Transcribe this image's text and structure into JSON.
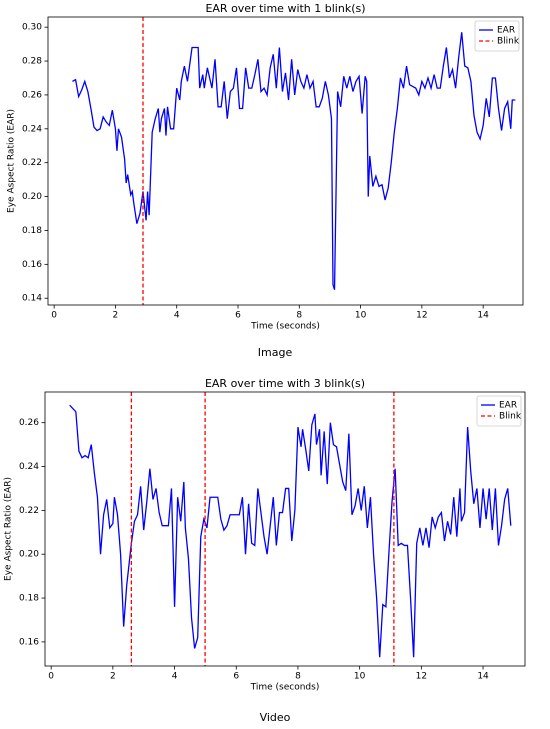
{
  "chart_data": [
    {
      "type": "line",
      "title": "EAR over time with 1 blink(s)",
      "xlabel": "Time (seconds)",
      "ylabel": "Eye Aspect Ratio (EAR)",
      "caption": "Image",
      "xlim": [
        -0.2,
        15.3
      ],
      "ylim": [
        0.136,
        0.306
      ],
      "xticks": [
        0,
        2,
        4,
        6,
        8,
        10,
        12,
        14
      ],
      "yticks": [
        0.14,
        0.16,
        0.18,
        {
          "value": 0.2,
          "label": "0.20"
        },
        0.22,
        0.24,
        0.26,
        0.28,
        {
          "value": 0.3,
          "label": "0.30"
        }
      ],
      "legend": "upper right",
      "x": [
        0.6,
        0.7,
        0.8,
        0.9,
        1.0,
        1.1,
        1.2,
        1.3,
        1.4,
        1.5,
        1.6,
        1.7,
        1.8,
        1.9,
        2.0,
        2.05,
        2.1,
        2.2,
        2.3,
        2.35,
        2.4,
        2.5,
        2.55,
        2.6,
        2.7,
        2.8,
        2.9,
        3.0,
        3.05,
        3.1,
        3.2,
        3.3,
        3.4,
        3.45,
        3.5,
        3.6,
        3.65,
        3.7,
        3.8,
        3.9,
        4.0,
        4.1,
        4.15,
        4.25,
        4.35,
        4.5,
        4.6,
        4.7,
        4.75,
        4.85,
        4.9,
        5.0,
        5.1,
        5.15,
        5.25,
        5.35,
        5.45,
        5.55,
        5.65,
        5.75,
        5.85,
        5.95,
        6.05,
        6.15,
        6.25,
        6.35,
        6.45,
        6.55,
        6.65,
        6.75,
        6.85,
        6.95,
        7.05,
        7.15,
        7.25,
        7.35,
        7.45,
        7.55,
        7.65,
        7.75,
        7.85,
        7.95,
        8.05,
        8.15,
        8.25,
        8.35,
        8.45,
        8.55,
        8.65,
        8.75,
        8.85,
        8.95,
        9.05,
        9.1,
        9.15,
        9.25,
        9.35,
        9.45,
        9.55,
        9.65,
        9.75,
        9.85,
        9.95,
        10.05,
        10.15,
        10.2,
        10.25,
        10.3,
        10.4,
        10.5,
        10.6,
        10.7,
        10.8,
        10.9,
        11.0,
        11.1,
        11.2,
        11.3,
        11.4,
        11.5,
        11.6,
        11.7,
        11.8,
        11.9,
        12.0,
        12.1,
        12.2,
        12.3,
        12.4,
        12.5,
        12.6,
        12.7,
        12.8,
        12.9,
        13.0,
        13.1,
        13.2,
        13.3,
        13.4,
        13.5,
        13.6,
        13.7,
        13.8,
        13.9,
        14.0,
        14.1,
        14.2,
        14.3,
        14.4,
        14.5,
        14.6,
        14.7,
        14.8,
        14.9,
        14.95,
        15.05
      ],
      "series": [
        {
          "name": "EAR",
          "color": "#0000ff",
          "values": [
            0.268,
            0.269,
            0.259,
            0.263,
            0.268,
            0.262,
            0.252,
            0.241,
            0.239,
            0.24,
            0.247,
            0.244,
            0.242,
            0.251,
            0.24,
            0.227,
            0.24,
            0.235,
            0.222,
            0.208,
            0.213,
            0.201,
            0.203,
            0.196,
            0.184,
            0.19,
            0.203,
            0.186,
            0.203,
            0.189,
            0.238,
            0.246,
            0.252,
            0.238,
            0.246,
            0.252,
            0.236,
            0.253,
            0.24,
            0.24,
            0.264,
            0.257,
            0.268,
            0.277,
            0.268,
            0.288,
            0.288,
            0.288,
            0.264,
            0.272,
            0.264,
            0.276,
            0.268,
            0.264,
            0.281,
            0.253,
            0.253,
            0.268,
            0.246,
            0.262,
            0.264,
            0.276,
            0.252,
            0.252,
            0.276,
            0.264,
            0.264,
            0.272,
            0.281,
            0.262,
            0.264,
            0.26,
            0.276,
            0.284,
            0.264,
            0.288,
            0.262,
            0.273,
            0.257,
            0.281,
            0.26,
            0.275,
            0.268,
            0.264,
            0.272,
            0.264,
            0.268,
            0.253,
            0.253,
            0.258,
            0.268,
            0.26,
            0.246,
            0.148,
            0.145,
            0.262,
            0.253,
            0.271,
            0.264,
            0.271,
            0.262,
            0.268,
            0.271,
            0.249,
            0.271,
            0.268,
            0.2,
            0.224,
            0.206,
            0.212,
            0.206,
            0.207,
            0.198,
            0.205,
            0.22,
            0.238,
            0.252,
            0.27,
            0.264,
            0.277,
            0.266,
            0.265,
            0.264,
            0.26,
            0.268,
            0.264,
            0.27,
            0.264,
            0.272,
            0.264,
            0.264,
            0.277,
            0.288,
            0.27,
            0.275,
            0.264,
            0.282,
            0.297,
            0.277,
            0.276,
            0.268,
            0.248,
            0.238,
            0.234,
            0.242,
            0.258,
            0.247,
            0.27,
            0.27,
            0.252,
            0.239,
            0.252,
            0.256,
            0.24,
            0.257,
            0.257
          ]
        }
      ],
      "vlines": {
        "name": "Blink",
        "color": "#ff0000",
        "x": [
          2.9
        ]
      }
    },
    {
      "type": "line",
      "title": "EAR over time with 3 blink(s)",
      "xlabel": "Time (seconds)",
      "ylabel": "Eye Aspect Ratio (EAR)",
      "caption": "Video",
      "xlim": [
        -0.2,
        15.36
      ],
      "ylim": [
        0.149,
        0.274
      ],
      "xticks": [
        0,
        2,
        4,
        6,
        8,
        10,
        12,
        14
      ],
      "yticks": [
        0.16,
        0.18,
        {
          "value": 0.2,
          "label": "0.20"
        },
        0.22,
        0.24,
        0.26
      ],
      "legend": "upper right",
      "x": [
        0.6,
        0.8,
        0.9,
        1.0,
        1.1,
        1.2,
        1.3,
        1.4,
        1.5,
        1.6,
        1.7,
        1.8,
        1.9,
        2.0,
        2.05,
        2.15,
        2.25,
        2.35,
        2.45,
        2.6,
        2.7,
        2.8,
        2.9,
        3.0,
        3.1,
        3.2,
        3.3,
        3.4,
        3.5,
        3.6,
        3.7,
        3.8,
        3.9,
        4.0,
        4.1,
        4.2,
        4.3,
        4.35,
        4.45,
        4.55,
        4.65,
        4.75,
        4.85,
        4.95,
        5.05,
        5.15,
        5.3,
        5.4,
        5.5,
        5.6,
        5.7,
        5.8,
        5.9,
        6.0,
        6.1,
        6.2,
        6.3,
        6.4,
        6.5,
        6.6,
        6.7,
        6.8,
        6.9,
        7.0,
        7.1,
        7.2,
        7.3,
        7.4,
        7.5,
        7.6,
        7.7,
        7.8,
        7.9,
        8.0,
        8.1,
        8.15,
        8.25,
        8.35,
        8.45,
        8.55,
        8.6,
        8.7,
        8.75,
        8.85,
        8.95,
        9.05,
        9.15,
        9.25,
        9.35,
        9.45,
        9.55,
        9.65,
        9.75,
        9.85,
        9.95,
        10.05,
        10.15,
        10.25,
        10.35,
        10.45,
        10.55,
        10.65,
        10.75,
        10.85,
        10.95,
        11.05,
        11.15,
        11.25,
        11.35,
        11.45,
        11.55,
        11.65,
        11.75,
        11.85,
        11.95,
        12.05,
        12.15,
        12.25,
        12.35,
        12.45,
        12.55,
        12.65,
        12.75,
        12.85,
        12.95,
        13.05,
        13.15,
        13.25,
        13.3,
        13.4,
        13.5,
        13.6,
        13.7,
        13.8,
        13.9,
        14.0,
        14.1,
        14.2,
        14.3,
        14.4,
        14.5,
        14.6,
        14.7,
        14.8,
        14.9
      ],
      "series": [
        {
          "name": "EAR",
          "color": "#0000ff",
          "values": [
            0.268,
            0.265,
            0.247,
            0.244,
            0.245,
            0.244,
            0.25,
            0.237,
            0.226,
            0.2,
            0.218,
            0.225,
            0.212,
            0.214,
            0.226,
            0.218,
            0.2,
            0.167,
            0.186,
            0.205,
            0.215,
            0.218,
            0.231,
            0.211,
            0.224,
            0.239,
            0.225,
            0.23,
            0.219,
            0.213,
            0.213,
            0.213,
            0.23,
            0.176,
            0.226,
            0.215,
            0.233,
            0.212,
            0.198,
            0.171,
            0.157,
            0.162,
            0.208,
            0.216,
            0.212,
            0.226,
            0.226,
            0.226,
            0.216,
            0.211,
            0.213,
            0.218,
            0.218,
            0.218,
            0.218,
            0.226,
            0.2,
            0.223,
            0.205,
            0.204,
            0.23,
            0.219,
            0.208,
            0.2,
            0.213,
            0.226,
            0.204,
            0.219,
            0.219,
            0.23,
            0.23,
            0.206,
            0.22,
            0.258,
            0.249,
            0.257,
            0.248,
            0.238,
            0.259,
            0.264,
            0.25,
            0.257,
            0.236,
            0.256,
            0.232,
            0.26,
            0.25,
            0.249,
            0.241,
            0.233,
            0.229,
            0.255,
            0.218,
            0.222,
            0.23,
            0.22,
            0.231,
            0.212,
            0.226,
            0.2,
            0.18,
            0.153,
            0.177,
            0.176,
            0.201,
            0.224,
            0.239,
            0.204,
            0.205,
            0.204,
            0.204,
            0.18,
            0.153,
            0.205,
            0.212,
            0.204,
            0.212,
            0.203,
            0.217,
            0.212,
            0.217,
            0.219,
            0.206,
            0.215,
            0.209,
            0.226,
            0.208,
            0.23,
            0.215,
            0.219,
            0.258,
            0.238,
            0.223,
            0.23,
            0.212,
            0.23,
            0.216,
            0.23,
            0.211,
            0.23,
            0.204,
            0.213,
            0.225,
            0.23,
            0.213
          ]
        }
      ],
      "vlines": {
        "name": "Blink",
        "color": "#ff0000",
        "x": [
          2.6,
          4.99,
          11.11
        ]
      }
    }
  ]
}
